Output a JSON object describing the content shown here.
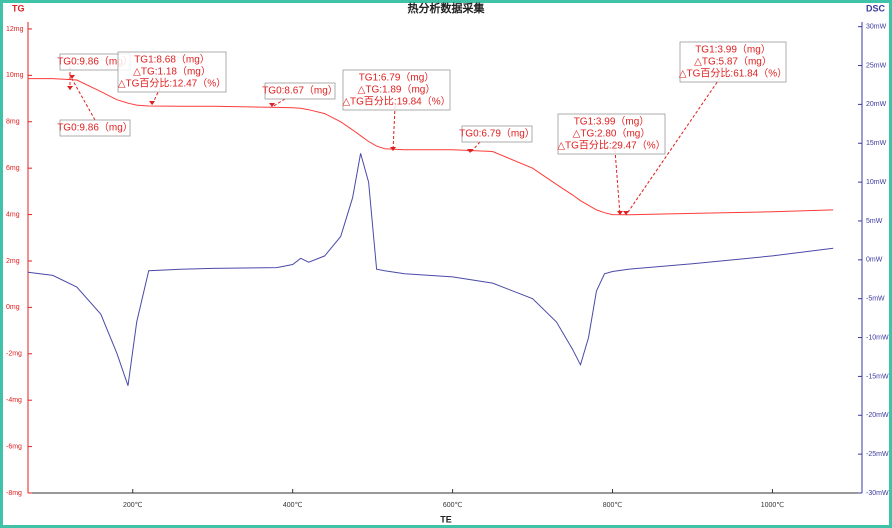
{
  "chart_data": {
    "type": "line",
    "title": "热分析数据采集",
    "ylabel": "TG",
    "y2label": "DSC",
    "xlabel": "TE",
    "x": [
      69,
      100,
      130,
      160,
      180,
      194,
      205,
      220,
      260,
      300,
      380,
      400,
      410,
      420,
      440,
      460,
      475,
      485,
      495,
      505,
      515,
      540,
      600,
      650,
      700,
      730,
      750,
      760,
      770,
      780,
      790,
      800,
      820,
      900,
      1000,
      1076
    ],
    "series": [
      {
        "name": "TG",
        "color": "#ff3b3b",
        "axis": "y",
        "values": [
          9.86,
          9.86,
          9.8,
          9.3,
          8.95,
          8.8,
          8.72,
          8.68,
          8.67,
          8.67,
          8.62,
          8.6,
          8.58,
          8.52,
          8.35,
          8.0,
          7.65,
          7.4,
          7.15,
          6.95,
          6.84,
          6.79,
          6.79,
          6.72,
          6.0,
          5.3,
          4.85,
          4.6,
          4.4,
          4.2,
          4.08,
          4.0,
          3.99,
          4.05,
          4.12,
          4.2
        ]
      },
      {
        "name": "DSC",
        "color": "#4a4aa8",
        "axis": "y2",
        "values": [
          -1.6,
          -2,
          -3.5,
          -7,
          -12,
          -16.2,
          -8,
          -1.4,
          -1.2,
          -1.1,
          -1.0,
          -0.6,
          0.2,
          -0.3,
          0.5,
          3,
          8,
          13.7,
          10,
          -1.2,
          -1.4,
          -1.8,
          -2.2,
          -3,
          -5,
          -8,
          -11.5,
          -13.5,
          -10,
          -4,
          -1.8,
          -1.5,
          -1.2,
          -0.5,
          0.5,
          1.5
        ]
      }
    ],
    "xlim": [
      69,
      1112
    ],
    "xticks": [
      {
        "value": 200,
        "label": "200℃"
      },
      {
        "value": 400,
        "label": "400℃"
      },
      {
        "value": 600,
        "label": "600℃"
      },
      {
        "value": 800,
        "label": "800℃"
      },
      {
        "value": 1000,
        "label": "1000℃"
      }
    ],
    "ylim": [
      -8,
      12.3
    ],
    "yticks": [
      {
        "value": 12,
        "label": "12mg"
      },
      {
        "value": 10,
        "label": "10mg"
      },
      {
        "value": 8,
        "label": "8mg"
      },
      {
        "value": 6,
        "label": "6mg"
      },
      {
        "value": 4,
        "label": "4mg"
      },
      {
        "value": 2,
        "label": "2mg"
      },
      {
        "value": 0,
        "label": "0mg"
      },
      {
        "value": -2,
        "label": "-2mg"
      },
      {
        "value": -4,
        "label": "-4mg"
      },
      {
        "value": -6,
        "label": "-6mg"
      },
      {
        "value": -8,
        "label": "-8mg"
      }
    ],
    "y2lim": [
      -30,
      30.6
    ],
    "y2ticks": [
      {
        "value": 30,
        "label": "30mW"
      },
      {
        "value": 25,
        "label": "25mW"
      },
      {
        "value": 20,
        "label": "20mW"
      },
      {
        "value": 15,
        "label": "15mW"
      },
      {
        "value": 10,
        "label": "10mW"
      },
      {
        "value": 5,
        "label": "5mW"
      },
      {
        "value": 0,
        "label": "0mW"
      },
      {
        "value": -5,
        "label": "-5mW"
      },
      {
        "value": -10,
        "label": "-10mW"
      },
      {
        "value": -15,
        "label": "-15mW"
      },
      {
        "value": -20,
        "label": "-20mW"
      },
      {
        "value": -25,
        "label": "-25mW"
      },
      {
        "value": -30,
        "label": "-30mW"
      }
    ],
    "annotations": [
      {
        "lines": [
          "TG0:9.86（mg）"
        ]
      },
      {
        "lines": [
          "TG0:9.86（mg）"
        ]
      },
      {
        "lines": [
          "TG1:8.68（mg）",
          "△TG:1.18（mg）",
          "△TG百分比:12.47（%）"
        ]
      },
      {
        "lines": [
          "TG0:8.67（mg）"
        ]
      },
      {
        "lines": [
          "TG1:6.79（mg）",
          "△TG:1.89（mg）",
          "△TG百分比:19.84（%）"
        ]
      },
      {
        "lines": [
          "TG0:6.79（mg）"
        ]
      },
      {
        "lines": [
          "TG1:3.99（mg）",
          "△TG:2.80（mg）",
          "△TG百分比:29.47（%）"
        ]
      },
      {
        "lines": [
          "TG1:3.99（mg）",
          "△TG:5.87（mg）",
          "△TG百分比:61.84（%）"
        ]
      }
    ]
  }
}
